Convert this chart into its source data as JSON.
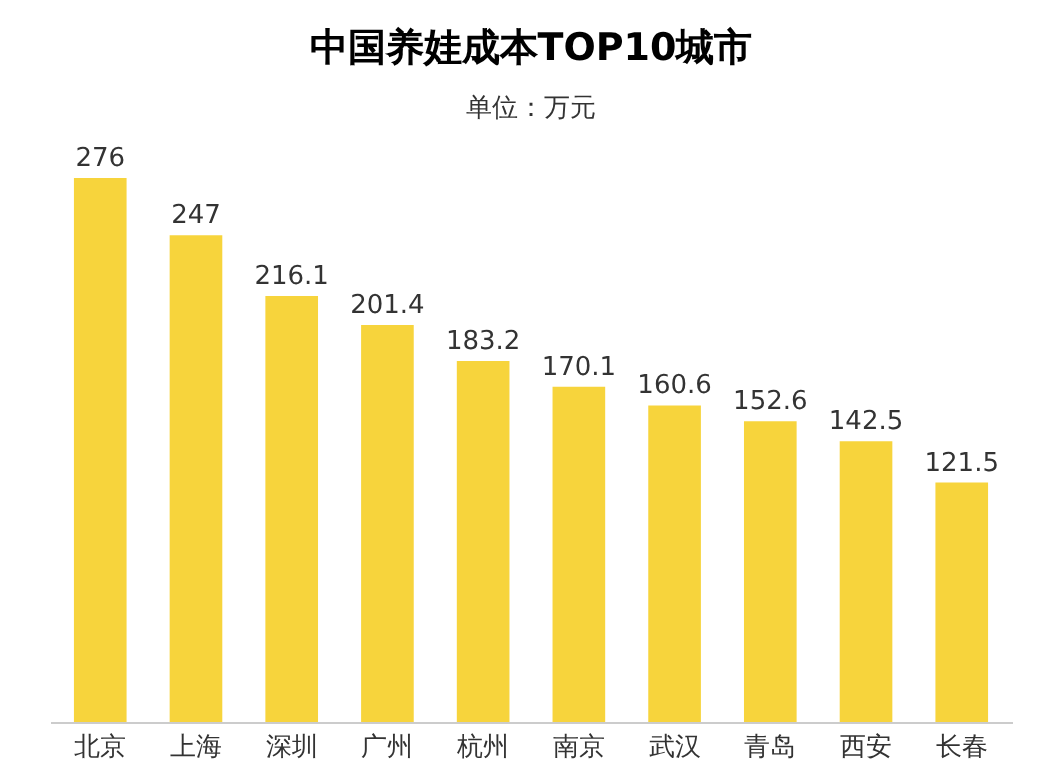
{
  "chart_data": {
    "type": "bar",
    "title": "中国养娃成本TOP10城市",
    "subtitle": "单位：万元",
    "categories": [
      "北京",
      "上海",
      "深圳",
      "广州",
      "杭州",
      "南京",
      "武汉",
      "青岛",
      "西安",
      "长春"
    ],
    "values": [
      276,
      247,
      216.1,
      201.4,
      183.2,
      170.1,
      160.6,
      152.6,
      142.5,
      121.5
    ],
    "color": "#f7d43c",
    "data_labels": true,
    "grid": false
  }
}
